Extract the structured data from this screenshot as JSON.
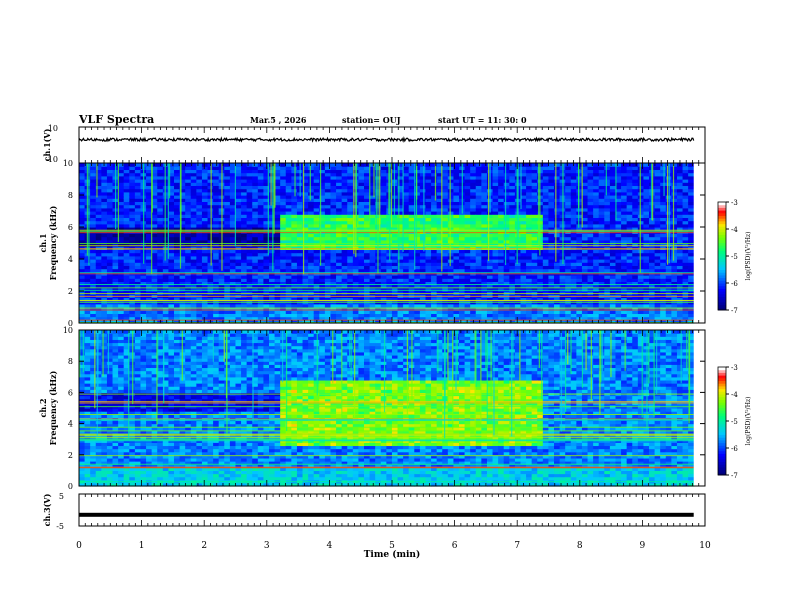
{
  "header": {
    "title": "VLF Spectra",
    "date": "Mar.5 , 2026",
    "station": "station= OUJ",
    "start": "start UT = 11: 30: 0"
  },
  "chart_data": [
    {
      "type": "line",
      "panel": "ch1-waveform",
      "ylabel": "ch.1(V)",
      "ylim": [
        -10,
        10
      ],
      "yticks": [
        "10",
        "-10"
      ],
      "series": [
        {
          "values": [
            3.0,
            3.1,
            2.9,
            3.0
          ]
        }
      ]
    },
    {
      "type": "heatmap",
      "panel": "ch1-spectrogram",
      "ylabel": "ch.1 Frequency (kHz)",
      "ylim": [
        0,
        10
      ],
      "yticks": [
        "0",
        "2",
        "4",
        "6",
        "8",
        "10"
      ],
      "colorbar": {
        "label": "log(PSD)(V²/Hz)",
        "range": [
          -7,
          -3
        ],
        "ticks": [
          "-3",
          "-4",
          "-5",
          "-6",
          "-7"
        ]
      },
      "colormap": [
        "#00007f",
        "#0000ff",
        "#00ffff",
        "#00ff00",
        "#ffff00",
        "#ff0000",
        "#ffffff"
      ],
      "feature": {
        "x_start_min": 3.2,
        "x_end_min": 7.4,
        "f_low_khz": 4.6,
        "f_high_khz": 6.8
      }
    },
    {
      "type": "heatmap",
      "panel": "ch2-spectrogram",
      "ylabel": "ch.2 Frequency (kHz)",
      "ylim": [
        0,
        10
      ],
      "yticks": [
        "0",
        "2",
        "4",
        "6",
        "8",
        "10"
      ],
      "colorbar": {
        "label": "log(PSD)(V²/Hz)",
        "range": [
          -7,
          -3
        ],
        "ticks": [
          "-3",
          "-4",
          "-5",
          "-6",
          "-7"
        ]
      },
      "colormap": [
        "#00007f",
        "#0000ff",
        "#00ffff",
        "#00ff00",
        "#ffff00",
        "#ff0000",
        "#ffffff"
      ],
      "feature": {
        "x_start_min": 3.2,
        "x_end_min": 7.4,
        "f_low_khz": 2.6,
        "f_high_khz": 6.7
      }
    },
    {
      "type": "line",
      "panel": "ch3-waveform",
      "ylabel": "ch.3(V)",
      "ylim": [
        -5,
        5
      ],
      "yticks": [
        "5",
        "-5"
      ],
      "series": [
        {
          "values": [
            -1.5,
            -1.5
          ]
        }
      ]
    }
  ],
  "xaxis": {
    "label": "Time (min)",
    "xlim": [
      0,
      10
    ],
    "ticks": [
      "0",
      "1",
      "2",
      "3",
      "4",
      "5",
      "6",
      "7",
      "8",
      "9",
      "10"
    ]
  }
}
